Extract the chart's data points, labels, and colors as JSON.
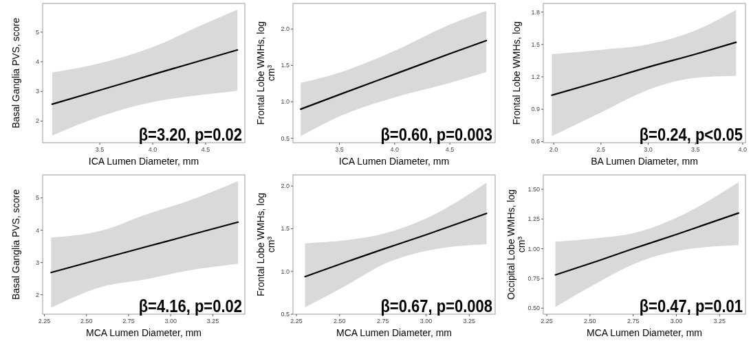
{
  "chart_data": [
    {
      "type": "line",
      "xlabel": "ICA Lumen Diameter, mm",
      "ylabel": "Basal Ganglia PVS, score",
      "xlim": [
        2.96,
        4.87
      ],
      "ylim": [
        1.27,
        5.97
      ],
      "xticks": [
        3.5,
        {
          "value": 4,
          "label": "4.0"
        },
        4.5
      ],
      "yticks": [
        2,
        3,
        4,
        5
      ],
      "series": [
        {
          "color": "#000000",
          "x": [
            3.05,
            3.5,
            4.0,
            4.5,
            4.8
          ],
          "values": [
            2.57,
            3.04,
            3.57,
            4.09,
            4.4
          ],
          "lower": [
            1.51,
            2.15,
            2.64,
            2.9,
            3.02
          ],
          "upper": [
            3.64,
            3.95,
            4.5,
            5.3,
            5.76
          ]
        }
      ],
      "annotations": [
        "β=3.20, p=0.02"
      ]
    },
    {
      "type": "line",
      "xlabel": "ICA Lumen Diameter, mm",
      "ylabel": "Frontal Lobe WMHs, log cm³",
      "xlim": [
        3.08,
        4.91
      ],
      "ylim": [
        0.44,
        2.35
      ],
      "xticks": [
        3.5,
        {
          "value": 4,
          "label": "4.0"
        },
        4.5
      ],
      "yticks": [
        0.5,
        {
          "value": 1,
          "label": "1.0"
        },
        1.5,
        {
          "value": 2,
          "label": "2.0"
        }
      ],
      "series": [
        {
          "color": "#000000",
          "x": [
            3.15,
            3.5,
            4.0,
            4.5,
            4.83
          ],
          "values": [
            0.9,
            1.1,
            1.38,
            1.66,
            1.84
          ],
          "lower": [
            0.53,
            0.8,
            1.06,
            1.26,
            1.41
          ],
          "upper": [
            1.26,
            1.4,
            1.7,
            2.06,
            2.25
          ]
        }
      ],
      "annotations": [
        "β=0.60, p=0.003"
      ]
    },
    {
      "type": "line",
      "xlabel": "BA Lumen Diameter, mm",
      "ylabel": "Frontal Lobe WMHs, log",
      "xlim": [
        1.89,
        4.03
      ],
      "ylim": [
        0.59,
        1.88
      ],
      "xticks": [
        {
          "value": 2,
          "label": "2.0"
        },
        2.5,
        {
          "value": 3,
          "label": "3.0"
        },
        3.5,
        {
          "value": 4,
          "label": "4.0"
        }
      ],
      "yticks": [
        0.6,
        0.9,
        1.2,
        1.5,
        1.8
      ],
      "series": [
        {
          "color": "#000000",
          "x": [
            1.98,
            2.5,
            3.0,
            3.5,
            3.93
          ],
          "values": [
            1.03,
            1.16,
            1.29,
            1.41,
            1.52
          ],
          "lower": [
            0.65,
            0.87,
            1.08,
            1.19,
            1.21
          ],
          "upper": [
            1.41,
            1.45,
            1.5,
            1.63,
            1.82
          ]
        }
      ],
      "annotations": [
        "β=0.24, p<0.05"
      ]
    },
    {
      "type": "line",
      "xlabel": "MCA Lumen Diameter, mm",
      "ylabel": "Basal Ganglia PVS, score",
      "xlim": [
        2.24,
        3.44
      ],
      "ylim": [
        1.4,
        5.71
      ],
      "xticks": [
        2.25,
        {
          "value": 2.5,
          "label": "2.50"
        },
        2.75,
        {
          "value": 3,
          "label": "3.00"
        },
        3.25
      ],
      "yticks": [
        2,
        3,
        4,
        5
      ],
      "series": [
        {
          "color": "#000000",
          "x": [
            2.29,
            2.6,
            2.85,
            3.1,
            3.4
          ],
          "values": [
            2.69,
            3.13,
            3.48,
            3.83,
            4.25
          ],
          "lower": [
            1.6,
            2.26,
            2.48,
            2.75,
            2.96
          ],
          "upper": [
            3.77,
            4.0,
            4.48,
            4.9,
            5.52
          ]
        }
      ],
      "annotations": [
        "β=4.16, p=0.02"
      ]
    },
    {
      "type": "line",
      "xlabel": "MCA Lumen Diameter, mm",
      "ylabel": "Frontal Lobe WMHs, log cm³",
      "xlim": [
        2.23,
        3.4
      ],
      "ylim": [
        0.5,
        2.13
      ],
      "xticks": [
        2.25,
        {
          "value": 2.5,
          "label": "2.50"
        },
        2.75,
        {
          "value": 3,
          "label": "3.00"
        },
        3.25
      ],
      "yticks": [
        0.5,
        {
          "value": 1,
          "label": "1.0"
        },
        1.5,
        {
          "value": 2,
          "label": "2.0"
        }
      ],
      "series": [
        {
          "color": "#000000",
          "x": [
            2.3,
            2.55,
            2.75,
            3.0,
            3.35
          ],
          "values": [
            0.94,
            1.12,
            1.26,
            1.43,
            1.68
          ],
          "lower": [
            0.58,
            0.85,
            1.08,
            1.24,
            1.32
          ],
          "upper": [
            1.33,
            1.37,
            1.44,
            1.62,
            2.04
          ]
        }
      ],
      "annotations": [
        "β=0.67, p=0.008"
      ]
    },
    {
      "type": "line",
      "xlabel": "MCA Lumen Diameter, mm",
      "ylabel": "Occipital Lobe WMHs, log cm³",
      "xlim": [
        2.23,
        3.4
      ],
      "ylim": [
        0.45,
        1.62
      ],
      "xticks": [
        2.25,
        {
          "value": 2.5,
          "label": "2.50"
        },
        2.75,
        {
          "value": 3,
          "label": "3.00"
        },
        3.25
      ],
      "yticks": [
        {
          "value": 0.5,
          "label": "0.50"
        },
        0.75,
        {
          "value": 1,
          "label": "1.00"
        },
        1.25,
        {
          "value": 1.5,
          "label": "1.50"
        }
      ],
      "series": [
        {
          "color": "#000000",
          "x": [
            2.3,
            2.55,
            2.75,
            3.0,
            3.36
          ],
          "values": [
            0.78,
            0.9,
            1.0,
            1.12,
            1.3
          ],
          "lower": [
            0.51,
            0.72,
            0.87,
            0.98,
            1.03
          ],
          "upper": [
            1.06,
            1.09,
            1.13,
            1.26,
            1.56
          ]
        }
      ],
      "annotations": [
        "β=0.47, p=0.01"
      ]
    }
  ]
}
